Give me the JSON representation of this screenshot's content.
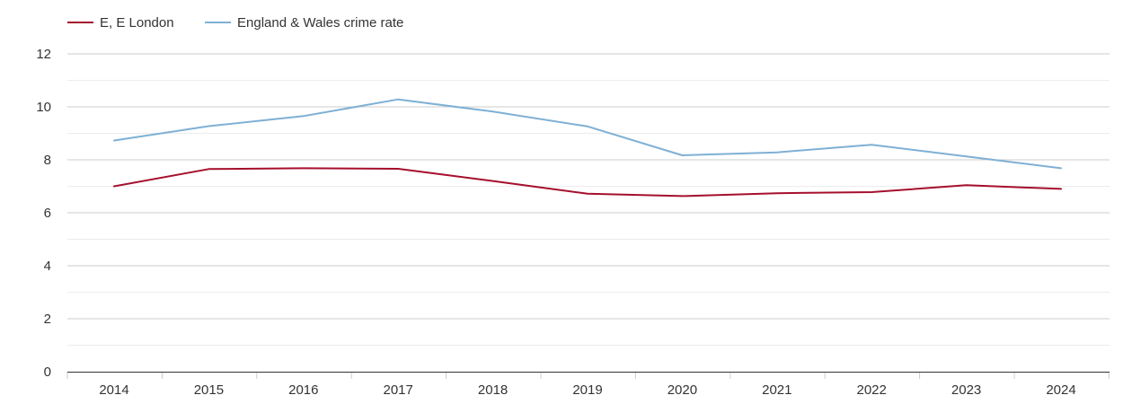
{
  "chart_data": {
    "type": "line",
    "title": "",
    "xlabel": "",
    "ylabel": "",
    "categories": [
      "2014",
      "2015",
      "2016",
      "2017",
      "2018",
      "2019",
      "2020",
      "2021",
      "2022",
      "2023",
      "2024"
    ],
    "ylim": [
      0,
      12
    ],
    "yticks": [
      "0",
      "2",
      "4",
      "6",
      "8",
      "10",
      "12"
    ],
    "grid": true,
    "legend_position": "top-left",
    "series": [
      {
        "name": "E, E London",
        "color": "#a50f2d",
        "values": [
          7.0,
          7.65,
          7.68,
          7.66,
          7.2,
          6.72,
          6.63,
          6.74,
          6.78,
          7.04,
          6.9
        ]
      },
      {
        "name": "England & Wales crime rate",
        "color": "#7eb0d5",
        "values": [
          8.73,
          9.27,
          9.65,
          10.28,
          9.82,
          9.26,
          8.17,
          8.28,
          8.57,
          8.13,
          7.68
        ]
      }
    ]
  }
}
